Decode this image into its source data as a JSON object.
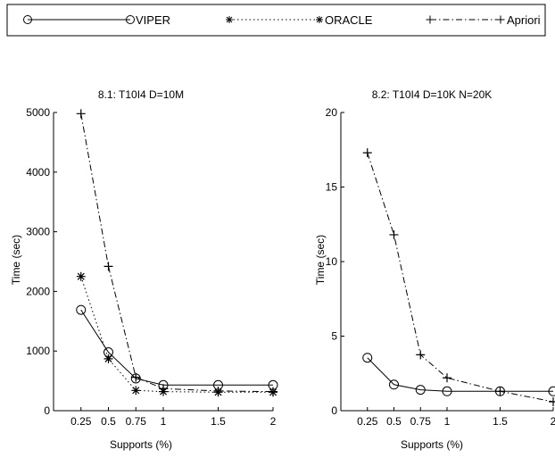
{
  "legend": {
    "entries": [
      {
        "label": "VIPER",
        "marker": "circle",
        "dash": "solid"
      },
      {
        "label": "ORACLE",
        "marker": "asterisk",
        "dash": "dotted"
      },
      {
        "label": "Apriori",
        "marker": "plus",
        "dash": "dashdot"
      }
    ]
  },
  "chart_data": [
    {
      "type": "line",
      "title": "8.1:  T10I4 D=10M",
      "xlabel": "Supports (%)",
      "ylabel": "Time (sec)",
      "x": [
        0.25,
        0.5,
        0.75,
        1,
        1.5,
        2
      ],
      "x_tick_labels": [
        "0.25",
        "0.5",
        "0.75",
        "1",
        "1.5",
        "2"
      ],
      "ylim": [
        0,
        5000
      ],
      "y_ticks": [
        0,
        1000,
        2000,
        3000,
        4000,
        5000
      ],
      "grid": false,
      "series": [
        {
          "name": "VIPER",
          "values": [
            1690,
            980,
            540,
            430,
            430,
            430
          ]
        },
        {
          "name": "ORACLE",
          "values": [
            2250,
            870,
            340,
            320,
            310,
            310
          ]
        },
        {
          "name": "Apriori",
          "values": [
            4980,
            2420,
            560,
            370,
            330,
            320
          ]
        }
      ]
    },
    {
      "type": "line",
      "title": "8.2:  T10I4 D=10K N=20K",
      "xlabel": "Supports (%)",
      "ylabel": "Time (sec)",
      "x": [
        0.25,
        0.5,
        0.75,
        1,
        1.5,
        2
      ],
      "x_tick_labels": [
        "0.25",
        "0.5",
        "0.75",
        "1",
        "1.5",
        "2"
      ],
      "ylim": [
        0,
        20
      ],
      "y_ticks": [
        0,
        5,
        10,
        15,
        20
      ],
      "grid": false,
      "series": [
        {
          "name": "VIPER",
          "values": [
            3.55,
            1.75,
            1.4,
            1.3,
            1.3,
            1.3
          ]
        },
        {
          "name": "Apriori",
          "values": [
            17.3,
            11.8,
            3.75,
            2.2,
            1.3,
            0.6
          ]
        }
      ]
    }
  ]
}
